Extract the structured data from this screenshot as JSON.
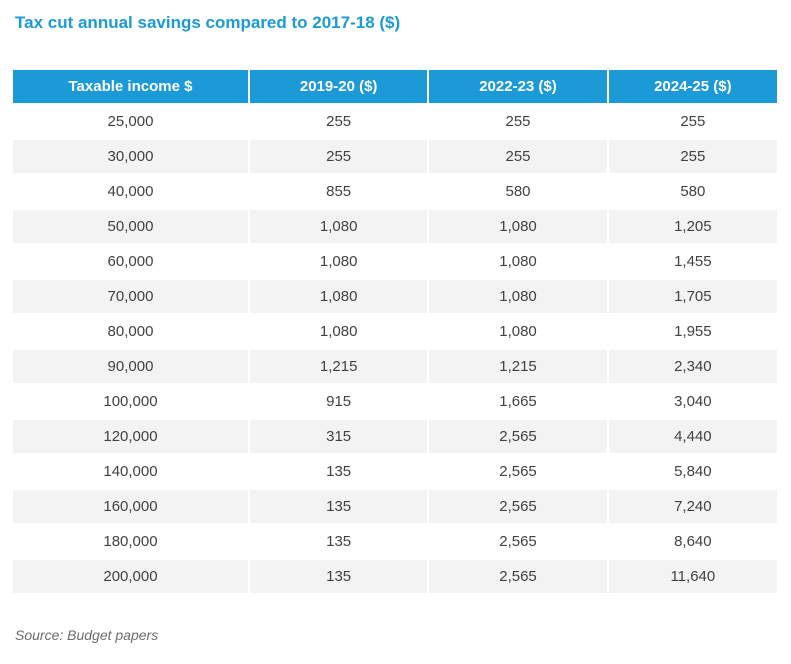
{
  "page": {
    "title": "Tax cut annual savings compared to 2017-18 ($)",
    "source": "Source: Budget papers"
  },
  "table": {
    "headers": [
      "Taxable income $",
      "2019-20 ($)",
      "2022-23 ($)",
      "2024-25 ($)"
    ],
    "rows": [
      [
        "25,000",
        "255",
        "255",
        "255"
      ],
      [
        "30,000",
        "255",
        "255",
        "255"
      ],
      [
        "40,000",
        "855",
        "580",
        "580"
      ],
      [
        "50,000",
        "1,080",
        "1,080",
        "1,205"
      ],
      [
        "60,000",
        "1,080",
        "1,080",
        "1,455"
      ],
      [
        "70,000",
        "1,080",
        "1,080",
        "1,705"
      ],
      [
        "80,000",
        "1,080",
        "1,080",
        "1,955"
      ],
      [
        "90,000",
        "1,215",
        "1,215",
        "2,340"
      ],
      [
        "100,000",
        "915",
        "1,665",
        "3,040"
      ],
      [
        "120,000",
        "315",
        "2,565",
        "4,440"
      ],
      [
        "140,000",
        "135",
        "2,565",
        "5,840"
      ],
      [
        "160,000",
        "135",
        "2,565",
        "7,240"
      ],
      [
        "180,000",
        "135",
        "2,565",
        "8,640"
      ],
      [
        "200,000",
        "135",
        "2,565",
        "11,640"
      ]
    ]
  },
  "colors": {
    "accent_blue": "#1b9ad7",
    "header_bg": "#1b9ad7",
    "header_text": "#ffffff",
    "stripe_gray": "#f3f3f3",
    "body_text": "#414141",
    "source_text": "#6b6b6b",
    "page_bg": "#ffffff"
  },
  "chart_data": {
    "type": "table",
    "title": "Tax cut annual savings compared to 2017-18 ($)",
    "columns": [
      "Taxable income $",
      "2019-20 ($)",
      "2022-23 ($)",
      "2024-25 ($)"
    ],
    "taxable_income": [
      25000,
      30000,
      40000,
      50000,
      60000,
      70000,
      80000,
      90000,
      100000,
      120000,
      140000,
      160000,
      180000,
      200000
    ],
    "series": [
      {
        "name": "2019-20 ($)",
        "values": [
          255,
          255,
          855,
          1080,
          1080,
          1080,
          1080,
          1215,
          915,
          315,
          135,
          135,
          135,
          135
        ]
      },
      {
        "name": "2022-23 ($)",
        "values": [
          255,
          255,
          580,
          1080,
          1080,
          1080,
          1080,
          1215,
          1665,
          2565,
          2565,
          2565,
          2565,
          2565
        ]
      },
      {
        "name": "2024-25 ($)",
        "values": [
          255,
          255,
          580,
          1205,
          1455,
          1705,
          1955,
          2340,
          3040,
          4440,
          5840,
          7240,
          8640,
          11640
        ]
      }
    ],
    "source": "Source: Budget papers",
    "layout": {
      "striped_rows": true,
      "header_style": "bold white on cyan",
      "cell_alignment": "center"
    }
  }
}
